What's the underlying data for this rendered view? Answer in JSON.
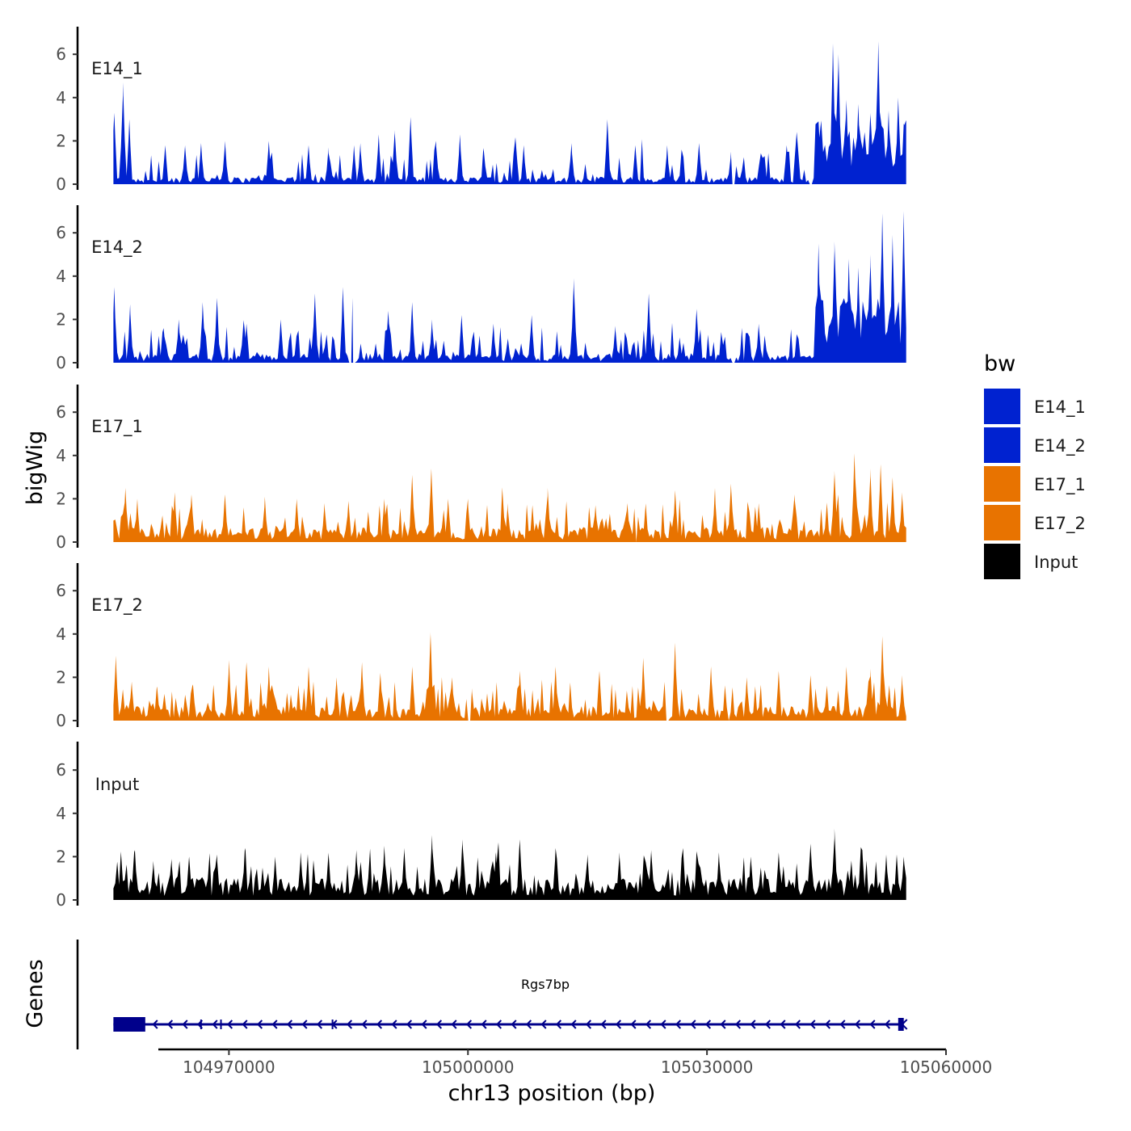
{
  "chart_data": {
    "type": "area",
    "title": "",
    "ylabel": "bigWig",
    "xlabel": "chr13 position (bp)",
    "ylim": [
      0,
      7
    ],
    "yticks": [
      0,
      2,
      4,
      6
    ],
    "xlim": [
      104951000,
      105060000
    ],
    "xticks": [
      104970000,
      105000000,
      105030000,
      105060000
    ],
    "xtick_labels": [
      "104970000",
      "105000000",
      "105030000",
      "105060000"
    ],
    "region": [
      104955500,
      105055000
    ],
    "legend": {
      "title": "bw",
      "position": "right",
      "entries": [
        {
          "name": "E14_1",
          "color": "#0022d0"
        },
        {
          "name": "E14_2",
          "color": "#0022d0"
        },
        {
          "name": "E17_1",
          "color": "#e87300"
        },
        {
          "name": "E17_2",
          "color": "#e87300"
        },
        {
          "name": "Input",
          "color": "#000000"
        }
      ]
    },
    "series": [
      {
        "name": "E14_1",
        "color": "#0022d0",
        "baseline": 0.2,
        "peaks": [
          {
            "x": 104955600,
            "y": 3.3
          },
          {
            "x": 104956700,
            "y": 4.7
          },
          {
            "x": 104957500,
            "y": 3.0
          },
          {
            "x": 104962000,
            "y": 1.8
          },
          {
            "x": 104964500,
            "y": 1.8
          },
          {
            "x": 104966500,
            "y": 1.9
          },
          {
            "x": 104969500,
            "y": 2.0
          },
          {
            "x": 104975000,
            "y": 2.0
          },
          {
            "x": 104980000,
            "y": 1.8
          },
          {
            "x": 104982500,
            "y": 1.7
          },
          {
            "x": 104985700,
            "y": 1.8
          },
          {
            "x": 104986500,
            "y": 1.9
          },
          {
            "x": 104988800,
            "y": 2.3
          },
          {
            "x": 104990800,
            "y": 2.5
          },
          {
            "x": 104992800,
            "y": 3.1
          },
          {
            "x": 104996000,
            "y": 2.0
          },
          {
            "x": 104999000,
            "y": 2.3
          },
          {
            "x": 105002000,
            "y": 1.5
          },
          {
            "x": 105007000,
            "y": 1.8
          },
          {
            "x": 105013000,
            "y": 1.9
          },
          {
            "x": 105017500,
            "y": 3.0
          },
          {
            "x": 105021000,
            "y": 1.8
          },
          {
            "x": 105025000,
            "y": 1.8
          },
          {
            "x": 105029000,
            "y": 1.9
          },
          {
            "x": 105033000,
            "y": 1.5
          },
          {
            "x": 105040000,
            "y": 1.8
          },
          {
            "x": 105044000,
            "y": 2.9
          },
          {
            "x": 105045800,
            "y": 6.5
          },
          {
            "x": 105046500,
            "y": 6.0
          },
          {
            "x": 105047500,
            "y": 3.9
          },
          {
            "x": 105049000,
            "y": 3.7
          },
          {
            "x": 105050500,
            "y": 3.3
          },
          {
            "x": 105051500,
            "y": 6.6
          },
          {
            "x": 105052800,
            "y": 3.4
          },
          {
            "x": 105054000,
            "y": 4.0
          },
          {
            "x": 105054700,
            "y": 2.8
          }
        ],
        "gaps": [
          [
            105033200,
            105033600
          ],
          [
            105042800,
            105043200
          ]
        ]
      },
      {
        "name": "E14_2",
        "color": "#0022d0",
        "baseline": 0.25,
        "peaks": [
          {
            "x": 104955600,
            "y": 3.5
          },
          {
            "x": 104957600,
            "y": 2.7
          },
          {
            "x": 104961800,
            "y": 1.6
          },
          {
            "x": 104963700,
            "y": 2.0
          },
          {
            "x": 104966700,
            "y": 2.8
          },
          {
            "x": 104968500,
            "y": 3.0
          },
          {
            "x": 104972200,
            "y": 1.8
          },
          {
            "x": 104976500,
            "y": 2.0
          },
          {
            "x": 104980800,
            "y": 3.2
          },
          {
            "x": 104984300,
            "y": 3.5
          },
          {
            "x": 104985500,
            "y": 3.0
          },
          {
            "x": 104990000,
            "y": 2.4
          },
          {
            "x": 104993000,
            "y": 2.8
          },
          {
            "x": 104995500,
            "y": 2.0
          },
          {
            "x": 104999200,
            "y": 2.2
          },
          {
            "x": 105003200,
            "y": 1.8
          },
          {
            "x": 105008000,
            "y": 2.2
          },
          {
            "x": 105013300,
            "y": 3.9
          },
          {
            "x": 105018500,
            "y": 1.7
          },
          {
            "x": 105022700,
            "y": 3.2
          },
          {
            "x": 105028700,
            "y": 2.5
          },
          {
            "x": 105036500,
            "y": 1.8
          },
          {
            "x": 105044000,
            "y": 5.5
          },
          {
            "x": 105046000,
            "y": 5.6
          },
          {
            "x": 105047800,
            "y": 4.8
          },
          {
            "x": 105049000,
            "y": 4.4
          },
          {
            "x": 105050500,
            "y": 5.0
          },
          {
            "x": 105052000,
            "y": 6.9
          },
          {
            "x": 105053300,
            "y": 5.9
          },
          {
            "x": 105054700,
            "y": 7.0
          }
        ],
        "gaps": [
          [
            104985100,
            104985900
          ],
          [
            105033100,
            105033600
          ]
        ]
      },
      {
        "name": "E17_1",
        "color": "#e87300",
        "baseline": 0.4,
        "peaks": [
          {
            "x": 104957000,
            "y": 2.5
          },
          {
            "x": 104958500,
            "y": 2.0
          },
          {
            "x": 104963200,
            "y": 2.3
          },
          {
            "x": 104965300,
            "y": 2.2
          },
          {
            "x": 104969500,
            "y": 2.2
          },
          {
            "x": 104974500,
            "y": 2.1
          },
          {
            "x": 104978500,
            "y": 2.0
          },
          {
            "x": 104982000,
            "y": 1.8
          },
          {
            "x": 104985000,
            "y": 1.9
          },
          {
            "x": 104989500,
            "y": 2.0
          },
          {
            "x": 104993000,
            "y": 3.1
          },
          {
            "x": 104995400,
            "y": 3.4
          },
          {
            "x": 104997500,
            "y": 2.0
          },
          {
            "x": 105000000,
            "y": 2.0
          },
          {
            "x": 105005000,
            "y": 1.8
          },
          {
            "x": 105010000,
            "y": 2.5
          },
          {
            "x": 105016000,
            "y": 1.7
          },
          {
            "x": 105020000,
            "y": 1.8
          },
          {
            "x": 105026000,
            "y": 2.4
          },
          {
            "x": 105031000,
            "y": 2.5
          },
          {
            "x": 105033000,
            "y": 2.7
          },
          {
            "x": 105036500,
            "y": 1.8
          },
          {
            "x": 105041000,
            "y": 2.2
          },
          {
            "x": 105046000,
            "y": 3.3
          },
          {
            "x": 105048500,
            "y": 4.1
          },
          {
            "x": 105050500,
            "y": 3.4
          },
          {
            "x": 105051800,
            "y": 3.6
          },
          {
            "x": 105053300,
            "y": 3.0
          },
          {
            "x": 105054500,
            "y": 2.3
          }
        ],
        "gaps": [
          [
            105020900,
            105021300
          ]
        ]
      },
      {
        "name": "E17_2",
        "color": "#e87300",
        "baseline": 0.4,
        "peaks": [
          {
            "x": 104955800,
            "y": 3.0
          },
          {
            "x": 104957800,
            "y": 1.8
          },
          {
            "x": 104961000,
            "y": 1.5
          },
          {
            "x": 104965500,
            "y": 1.6
          },
          {
            "x": 104970000,
            "y": 2.8
          },
          {
            "x": 104972200,
            "y": 2.7
          },
          {
            "x": 104975000,
            "y": 2.5
          },
          {
            "x": 104980000,
            "y": 2.5
          },
          {
            "x": 104983500,
            "y": 2.0
          },
          {
            "x": 104986700,
            "y": 2.7
          },
          {
            "x": 104989000,
            "y": 2.2
          },
          {
            "x": 104993000,
            "y": 2.5
          },
          {
            "x": 104995300,
            "y": 4.1
          },
          {
            "x": 104998000,
            "y": 2.0
          },
          {
            "x": 105000500,
            "y": 1.5
          },
          {
            "x": 105006500,
            "y": 2.3
          },
          {
            "x": 105011000,
            "y": 2.5
          },
          {
            "x": 105016500,
            "y": 2.3
          },
          {
            "x": 105022000,
            "y": 2.9
          },
          {
            "x": 105026000,
            "y": 3.6
          },
          {
            "x": 105030500,
            "y": 2.5
          },
          {
            "x": 105035000,
            "y": 2.0
          },
          {
            "x": 105039000,
            "y": 2.3
          },
          {
            "x": 105043000,
            "y": 2.1
          },
          {
            "x": 105047500,
            "y": 2.5
          },
          {
            "x": 105050500,
            "y": 2.4
          },
          {
            "x": 105052000,
            "y": 3.9
          },
          {
            "x": 105054500,
            "y": 2.1
          }
        ],
        "gaps": [
          [
            104999900,
            105000300
          ],
          [
            105024900,
            105025300
          ],
          [
            105032500,
            105032900
          ]
        ]
      },
      {
        "name": "Input",
        "color": "#000000",
        "baseline": 0.6,
        "peaks": [
          {
            "x": 104956000,
            "y": 1.7
          },
          {
            "x": 104958200,
            "y": 2.3
          },
          {
            "x": 104960500,
            "y": 1.8
          },
          {
            "x": 104962800,
            "y": 1.9
          },
          {
            "x": 104965000,
            "y": 2.0
          },
          {
            "x": 104968500,
            "y": 2.1
          },
          {
            "x": 104972000,
            "y": 2.4
          },
          {
            "x": 104975800,
            "y": 2.0
          },
          {
            "x": 104979000,
            "y": 2.2
          },
          {
            "x": 104982500,
            "y": 2.2
          },
          {
            "x": 104986000,
            "y": 2.3
          },
          {
            "x": 104989500,
            "y": 2.5
          },
          {
            "x": 104992000,
            "y": 2.4
          },
          {
            "x": 104995500,
            "y": 3.0
          },
          {
            "x": 104999300,
            "y": 2.8
          },
          {
            "x": 105003500,
            "y": 2.2
          },
          {
            "x": 105006500,
            "y": 2.8
          },
          {
            "x": 105011000,
            "y": 2.4
          },
          {
            "x": 105015000,
            "y": 2.1
          },
          {
            "x": 105019000,
            "y": 2.2
          },
          {
            "x": 105023000,
            "y": 2.3
          },
          {
            "x": 105027000,
            "y": 2.4
          },
          {
            "x": 105031500,
            "y": 2.2
          },
          {
            "x": 105035500,
            "y": 2.0
          },
          {
            "x": 105039000,
            "y": 2.2
          },
          {
            "x": 105043000,
            "y": 2.6
          },
          {
            "x": 105046000,
            "y": 3.3
          },
          {
            "x": 105049500,
            "y": 2.3
          },
          {
            "x": 105052500,
            "y": 2.1
          },
          {
            "x": 105054700,
            "y": 2.0
          }
        ],
        "gaps": []
      }
    ],
    "genes_track": {
      "ylabel": "Genes",
      "gene": {
        "name": "Rgs7bp",
        "start": 104955500,
        "end": 105054700,
        "strand": "-",
        "color": "#00008b",
        "utr_end": 104959500,
        "end_exon": [
          105054000,
          105054700
        ]
      }
    }
  }
}
